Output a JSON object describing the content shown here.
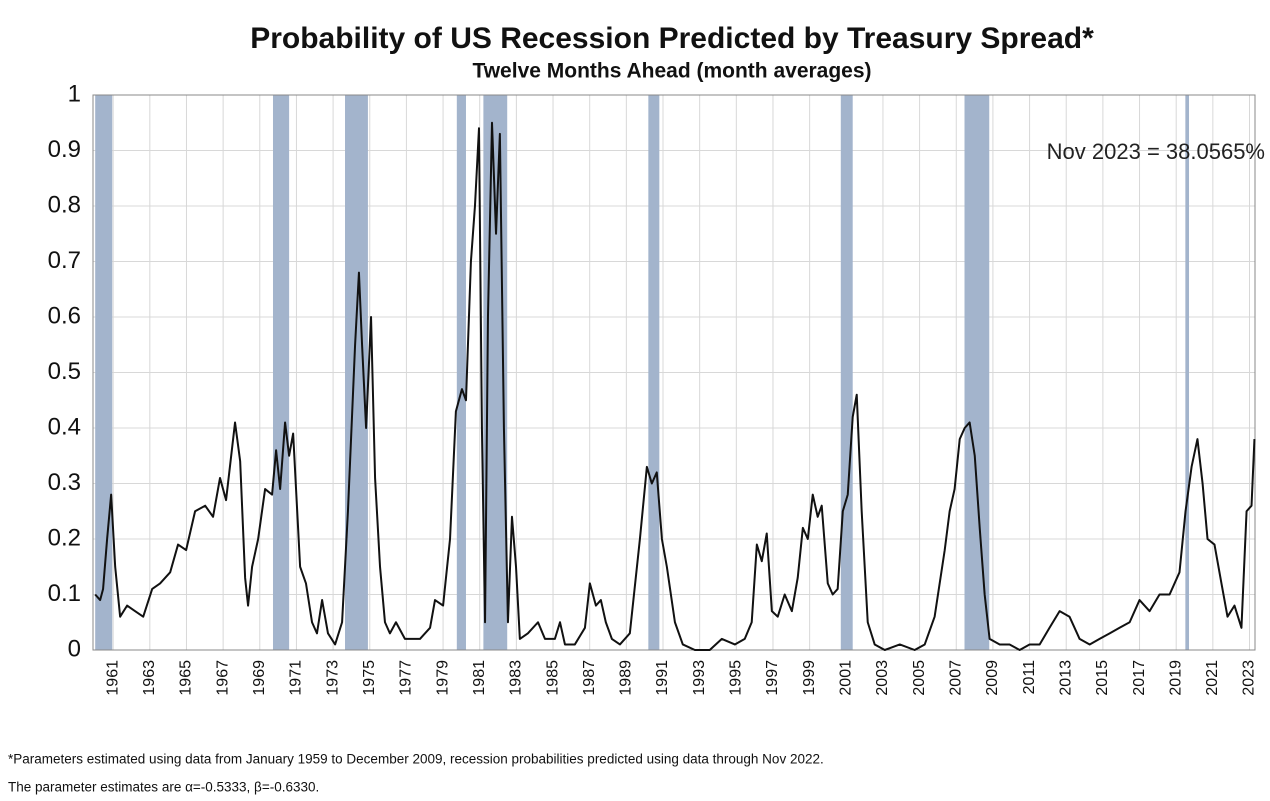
{
  "chart_data": {
    "type": "line",
    "title": "Probability of US Recession Predicted by Treasury Spread*",
    "subtitle": "Twelve Months Ahead (month averages)",
    "annotation": "Nov 2023 = 38.0565%",
    "footnotes": [
      "*Parameters estimated using data from January 1959 to December 2009, recession probabilities predicted using data through Nov 2022.",
      "The parameter estimates are α=-0.5333, β=-0.6330."
    ],
    "xlim": [
      1959.9,
      2023.3
    ],
    "ylim": [
      0,
      1
    ],
    "xticks": [
      1961,
      1963,
      1965,
      1967,
      1969,
      1971,
      1973,
      1975,
      1977,
      1979,
      1981,
      1983,
      1985,
      1987,
      1989,
      1991,
      1993,
      1995,
      1997,
      1999,
      2001,
      2003,
      2005,
      2007,
      2009,
      2011,
      2013,
      2015,
      2017,
      2019,
      2021,
      2023
    ],
    "yticks": [
      0,
      0.1,
      0.2,
      0.3,
      0.4,
      0.5,
      0.6,
      0.7,
      0.8,
      0.9,
      1
    ],
    "grid": true,
    "band_color": "#a3b4cc",
    "recession_bands": [
      [
        1960.02,
        1960.95
      ],
      [
        1969.72,
        1970.6
      ],
      [
        1973.65,
        1974.9
      ],
      [
        1979.75,
        1980.25
      ],
      [
        1981.2,
        1982.5
      ],
      [
        1990.2,
        1990.8
      ],
      [
        2000.7,
        2001.35
      ],
      [
        2007.45,
        2008.8
      ],
      [
        2019.5,
        2019.7
      ]
    ],
    "series": [
      {
        "color": "#111111",
        "x": [
          1960.02,
          1960.29,
          1960.45,
          1960.67,
          1960.89,
          1961.11,
          1961.38,
          1961.76,
          1962.2,
          1962.64,
          1963.13,
          1963.56,
          1964.11,
          1964.54,
          1964.98,
          1965.47,
          1966.02,
          1966.45,
          1966.83,
          1967.16,
          1967.65,
          1967.93,
          1968.2,
          1968.36,
          1968.58,
          1968.91,
          1969.29,
          1969.67,
          1969.89,
          1970.11,
          1970.38,
          1970.6,
          1970.82,
          1971.2,
          1971.52,
          1971.85,
          1972.12,
          1972.4,
          1972.72,
          1973.11,
          1973.49,
          1973.81,
          1974.2,
          1974.41,
          1974.58,
          1974.8,
          1975.07,
          1975.29,
          1975.56,
          1975.83,
          1976.1,
          1976.43,
          1976.92,
          1977.74,
          1978.29,
          1978.56,
          1979.0,
          1979.38,
          1979.7,
          1980.03,
          1980.25,
          1980.52,
          1980.74,
          1980.96,
          1981.12,
          1981.29,
          1981.45,
          1981.67,
          1981.89,
          1982.1,
          1982.32,
          1982.54,
          1982.76,
          1982.98,
          1983.19,
          1983.63,
          1984.18,
          1984.56,
          1985.1,
          1985.38,
          1985.65,
          1986.19,
          1986.74,
          1987.01,
          1987.34,
          1987.61,
          1987.88,
          1988.21,
          1988.65,
          1989.19,
          1989.74,
          1990.12,
          1990.39,
          1990.66,
          1990.94,
          1991.21,
          1991.65,
          1992.08,
          1992.74,
          1993.55,
          1994.21,
          1994.92,
          1995.46,
          1995.84,
          1996.12,
          1996.39,
          1996.66,
          1996.94,
          1997.26,
          1997.64,
          1998.03,
          1998.35,
          1998.63,
          1998.9,
          1999.17,
          1999.44,
          1999.66,
          1999.99,
          2000.26,
          2000.53,
          2000.81,
          2001.08,
          2001.35,
          2001.57,
          2001.84,
          2002.17,
          2002.55,
          2003.1,
          2003.92,
          2004.73,
          2005.28,
          2005.82,
          2006.37,
          2006.64,
          2006.91,
          2007.19,
          2007.46,
          2007.73,
          2008.01,
          2008.28,
          2008.55,
          2008.82,
          2009.37,
          2009.91,
          2010.46,
          2011.0,
          2011.55,
          2012.09,
          2012.64,
          2013.18,
          2013.73,
          2014.28,
          2014.82,
          2015.37,
          2015.91,
          2016.46,
          2017.0,
          2017.55,
          2018.09,
          2018.64,
          2019.18,
          2019.51,
          2019.84,
          2020.16,
          2020.44,
          2020.71,
          2021.09,
          2021.47,
          2021.8,
          2022.18,
          2022.56,
          2022.84,
          2023.11,
          2023.27
        ],
        "values": [
          0.1,
          0.09,
          0.11,
          0.2,
          0.28,
          0.15,
          0.06,
          0.08,
          0.07,
          0.06,
          0.11,
          0.12,
          0.14,
          0.19,
          0.18,
          0.25,
          0.26,
          0.24,
          0.31,
          0.27,
          0.41,
          0.34,
          0.13,
          0.08,
          0.15,
          0.2,
          0.29,
          0.28,
          0.36,
          0.29,
          0.41,
          0.35,
          0.39,
          0.15,
          0.12,
          0.05,
          0.03,
          0.09,
          0.03,
          0.01,
          0.05,
          0.25,
          0.55,
          0.68,
          0.55,
          0.4,
          0.6,
          0.31,
          0.15,
          0.05,
          0.03,
          0.05,
          0.02,
          0.02,
          0.04,
          0.09,
          0.08,
          0.2,
          0.43,
          0.47,
          0.45,
          0.7,
          0.8,
          0.94,
          0.4,
          0.05,
          0.6,
          0.95,
          0.75,
          0.93,
          0.4,
          0.05,
          0.24,
          0.15,
          0.02,
          0.03,
          0.05,
          0.02,
          0.02,
          0.05,
          0.01,
          0.01,
          0.04,
          0.12,
          0.08,
          0.09,
          0.05,
          0.02,
          0.01,
          0.03,
          0.2,
          0.33,
          0.3,
          0.32,
          0.2,
          0.15,
          0.05,
          0.01,
          0.0,
          0.0,
          0.02,
          0.01,
          0.02,
          0.05,
          0.19,
          0.16,
          0.21,
          0.07,
          0.06,
          0.1,
          0.07,
          0.13,
          0.22,
          0.2,
          0.28,
          0.24,
          0.26,
          0.12,
          0.1,
          0.11,
          0.25,
          0.28,
          0.42,
          0.46,
          0.25,
          0.05,
          0.01,
          0.0,
          0.01,
          0.0,
          0.01,
          0.06,
          0.18,
          0.25,
          0.29,
          0.38,
          0.4,
          0.41,
          0.35,
          0.22,
          0.1,
          0.02,
          0.01,
          0.01,
          0.0,
          0.01,
          0.01,
          0.04,
          0.07,
          0.06,
          0.02,
          0.01,
          0.02,
          0.03,
          0.04,
          0.05,
          0.09,
          0.07,
          0.1,
          0.1,
          0.14,
          0.25,
          0.33,
          0.38,
          0.3,
          0.2,
          0.19,
          0.12,
          0.06,
          0.08,
          0.04,
          0.25,
          0.26,
          0.38
        ]
      }
    ]
  }
}
